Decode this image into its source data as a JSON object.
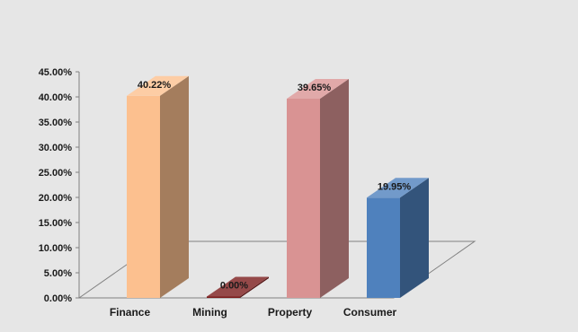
{
  "chart_data": {
    "type": "bar",
    "title": "",
    "xlabel": "",
    "ylabel": "",
    "categories": [
      "Finance",
      "Mining",
      "Property",
      "Consumer"
    ],
    "values": [
      40.22,
      0.0,
      39.65,
      19.95
    ],
    "data_labels": [
      "40.22%",
      "0.00%",
      "39.65%",
      "19.95%"
    ],
    "ylim": [
      0,
      45
    ],
    "yticks": [
      0,
      5,
      10,
      15,
      20,
      25,
      30,
      35,
      40,
      45
    ],
    "ytick_labels": [
      "0.00%",
      "5.00%",
      "10.00%",
      "15.00%",
      "20.00%",
      "25.00%",
      "30.00%",
      "35.00%",
      "40.00%",
      "45.00%"
    ],
    "grid": false,
    "legend": "none",
    "style": "3d-column",
    "colors": [
      "#fcc08f",
      "#7b1c1c",
      "#d99393",
      "#4f81bd"
    ],
    "background": "#e6e6e6"
  }
}
